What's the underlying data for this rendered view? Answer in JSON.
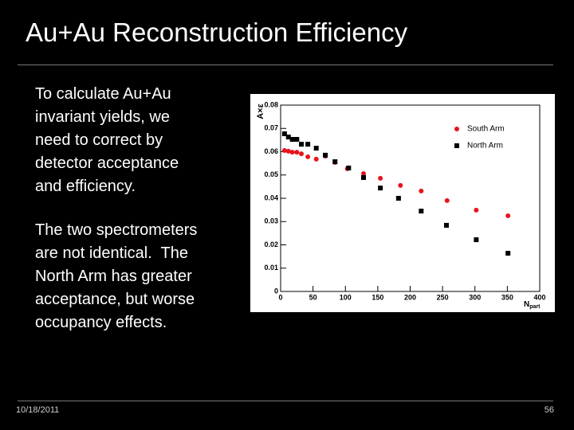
{
  "slide": {
    "title": "Au+Au Reconstruction Efficiency",
    "paragraphs": [
      [
        "To calculate Au+Au",
        "invariant yields, we",
        "need to correct by",
        "detector acceptance",
        "and efficiency."
      ],
      [
        "The two spectrometers",
        "are not identical.  The",
        "North Arm has greater",
        "acceptance, but worse",
        "occupancy effects."
      ]
    ],
    "footer": {
      "date": "10/18/2011",
      "page": "56"
    }
  },
  "chart_data": {
    "type": "scatter",
    "y_label": "A×ε",
    "x_label": "N",
    "x_label_sub": "part",
    "xlim": [
      0,
      400
    ],
    "xticks": [
      0,
      50,
      100,
      150,
      200,
      250,
      300,
      350,
      400
    ],
    "ylim": [
      0,
      0.08
    ],
    "yticks": [
      0,
      0.01,
      0.02,
      0.03,
      0.04,
      0.05,
      0.06,
      0.07,
      0.08
    ],
    "grid": false,
    "legend": "upper right",
    "series": [
      {
        "name": "South Arm",
        "color": "#e8141c",
        "marker": "circle",
        "x": [
          6,
          12,
          18,
          25,
          32,
          42,
          55,
          69,
          84,
          103,
          128,
          154,
          185,
          217,
          257,
          302,
          351
        ],
        "values": [
          0.0605,
          0.0602,
          0.0598,
          0.0598,
          0.0591,
          0.0578,
          0.0568,
          0.0581,
          0.0554,
          0.0527,
          0.0506,
          0.0486,
          0.0455,
          0.0431,
          0.039,
          0.0349,
          0.0325
        ]
      },
      {
        "name": "North Arm",
        "color": "#000000",
        "marker": "square",
        "x": [
          6,
          12,
          18,
          25,
          32,
          42,
          55,
          69,
          84,
          105,
          128,
          154,
          182,
          217,
          256,
          302,
          351
        ],
        "values": [
          0.0677,
          0.0663,
          0.0653,
          0.0653,
          0.0632,
          0.0632,
          0.0615,
          0.0585,
          0.0557,
          0.053,
          0.0489,
          0.0444,
          0.04,
          0.0345,
          0.0284,
          0.0222,
          0.0164
        ]
      }
    ]
  }
}
